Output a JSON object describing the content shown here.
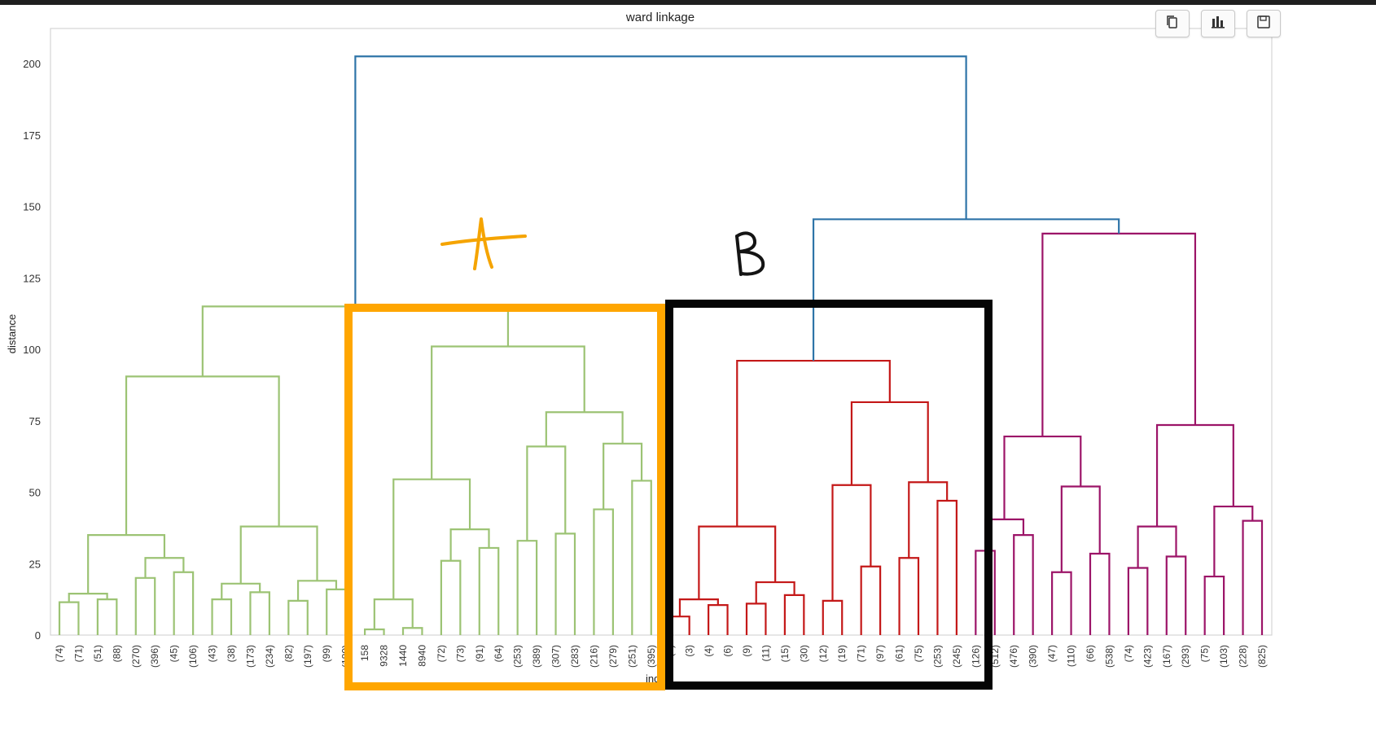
{
  "chart_data": {
    "type": "dendrogram",
    "title": "ward linkage",
    "xlabel": "index",
    "ylabel": "distance",
    "ylim": [
      0,
      212
    ],
    "yticks": [
      0,
      25,
      50,
      75,
      100,
      125,
      150,
      175,
      200
    ],
    "grid": false,
    "leaf_labels": [
      "(74)",
      "(71)",
      "(51)",
      "(88)",
      "(270)",
      "(396)",
      "(45)",
      "(106)",
      "(43)",
      "(38)",
      "(173)",
      "(234)",
      "(82)",
      "(197)",
      "(99)",
      "(180)",
      "158",
      "9328",
      "1440",
      "8940",
      "(72)",
      "(73)",
      "(91)",
      "(64)",
      "(253)",
      "(389)",
      "(307)",
      "(283)",
      "(216)",
      "(279)",
      "(251)",
      "(395)",
      "(1)",
      "(3)",
      "(4)",
      "(6)",
      "(9)",
      "(11)",
      "(15)",
      "(30)",
      "(12)",
      "(19)",
      "(71)",
      "(97)",
      "(61)",
      "(75)",
      "(253)",
      "(245)",
      "(126)",
      "(512)",
      "(476)",
      "(390)",
      "(47)",
      "(110)",
      "(66)",
      "(538)",
      "(74)",
      "(423)",
      "(167)",
      "(293)",
      "(75)",
      "(103)",
      "(228)",
      "(825)"
    ],
    "colors": {
      "cluster1": "#9cc374",
      "cluster2": "#c41818",
      "cluster3": "#9c1468",
      "root": "#2e74a8"
    },
    "links": [
      {
        "a": 0,
        "b": 1,
        "h": 11.5,
        "c": "cluster1"
      },
      {
        "a": 2,
        "b": 3,
        "h": 12.5,
        "c": "cluster1"
      },
      {
        "a": "L0",
        "b": "L1",
        "h": 14.5,
        "c": "cluster1"
      },
      {
        "a": 4,
        "b": 5,
        "h": 20,
        "c": "cluster1"
      },
      {
        "a": 6,
        "b": 7,
        "h": 22,
        "c": "cluster1"
      },
      {
        "a": "L3",
        "b": "L4",
        "h": 27,
        "c": "cluster1"
      },
      {
        "a": "L2",
        "b": "L5",
        "h": 35,
        "c": "cluster1"
      },
      {
        "a": 8,
        "b": 9,
        "h": 12.5,
        "c": "cluster1"
      },
      {
        "a": 10,
        "b": 11,
        "h": 15,
        "c": "cluster1"
      },
      {
        "a": "L7",
        "b": "L8",
        "h": 18,
        "c": "cluster1"
      },
      {
        "a": 12,
        "b": 13,
        "h": 12,
        "c": "cluster1"
      },
      {
        "a": 14,
        "b": 15,
        "h": 16,
        "c": "cluster1"
      },
      {
        "a": "L10",
        "b": "L11",
        "h": 19,
        "c": "cluster1"
      },
      {
        "a": "L9",
        "b": "L12",
        "h": 38,
        "c": "cluster1"
      },
      {
        "a": "L6",
        "b": "L13",
        "h": 90.5,
        "c": "cluster1"
      },
      {
        "a": 16,
        "b": 17,
        "h": 2,
        "c": "cluster1"
      },
      {
        "a": 18,
        "b": 19,
        "h": 2.5,
        "c": "cluster1"
      },
      {
        "a": "L15",
        "b": "L16",
        "h": 12.5,
        "c": "cluster1"
      },
      {
        "a": 20,
        "b": 21,
        "h": 26,
        "c": "cluster1"
      },
      {
        "a": 22,
        "b": 23,
        "h": 30.5,
        "c": "cluster1"
      },
      {
        "a": "L18",
        "b": "L19",
        "h": 37,
        "c": "cluster1"
      },
      {
        "a": "L17",
        "b": "L20",
        "h": 54.5,
        "c": "cluster1"
      },
      {
        "a": 24,
        "b": 25,
        "h": 33,
        "c": "cluster1"
      },
      {
        "a": 26,
        "b": 27,
        "h": 35.5,
        "c": "cluster1"
      },
      {
        "a": "L22",
        "b": "L23",
        "h": 66,
        "c": "cluster1"
      },
      {
        "a": 28,
        "b": 29,
        "h": 44,
        "c": "cluster1"
      },
      {
        "a": 30,
        "b": 31,
        "h": 54,
        "c": "cluster1"
      },
      {
        "a": "L25",
        "b": "L26",
        "h": 67,
        "c": "cluster1"
      },
      {
        "a": "L24",
        "b": "L27",
        "h": 78,
        "c": "cluster1"
      },
      {
        "a": "L21",
        "b": "L28",
        "h": 101,
        "c": "cluster1"
      },
      {
        "a": "L14",
        "b": "L29",
        "h": 115,
        "c": "cluster1"
      },
      {
        "a": 32,
        "b": 33,
        "h": 6.5,
        "c": "cluster2"
      },
      {
        "a": 34,
        "b": 35,
        "h": 10.5,
        "c": "cluster2"
      },
      {
        "a": "L31",
        "b": "L32",
        "h": 12.5,
        "c": "cluster2"
      },
      {
        "a": 36,
        "b": 37,
        "h": 11,
        "c": "cluster2"
      },
      {
        "a": 38,
        "b": 39,
        "h": 14,
        "c": "cluster2"
      },
      {
        "a": "L34",
        "b": "L35",
        "h": 18.5,
        "c": "cluster2"
      },
      {
        "a": "L33",
        "b": "L36",
        "h": 38,
        "c": "cluster2"
      },
      {
        "a": 40,
        "b": 41,
        "h": 12,
        "c": "cluster2"
      },
      {
        "a": 42,
        "b": 43,
        "h": 24,
        "c": "cluster2"
      },
      {
        "a": "L38",
        "b": "L39",
        "h": 52.5,
        "c": "cluster2"
      },
      {
        "a": 44,
        "b": 45,
        "h": 27,
        "c": "cluster2"
      },
      {
        "a": 46,
        "b": 47,
        "h": 47,
        "c": "cluster2"
      },
      {
        "a": "L41",
        "b": "L42",
        "h": 53.5,
        "c": "cluster2"
      },
      {
        "a": "L40",
        "b": "L43",
        "h": 81.5,
        "c": "cluster2"
      },
      {
        "a": "L37",
        "b": "L44",
        "h": 96,
        "c": "cluster2"
      },
      {
        "a": 48,
        "b": 49,
        "h": 29.5,
        "c": "cluster3"
      },
      {
        "a": 50,
        "b": 51,
        "h": 35,
        "c": "cluster3"
      },
      {
        "a": "L46",
        "b": "L47",
        "h": 40.5,
        "c": "cluster3"
      },
      {
        "a": 52,
        "b": 53,
        "h": 22,
        "c": "cluster3"
      },
      {
        "a": 54,
        "b": 55,
        "h": 28.5,
        "c": "cluster3"
      },
      {
        "a": "L49",
        "b": "L50",
        "h": 52,
        "c": "cluster3"
      },
      {
        "a": "L48",
        "b": "L51",
        "h": 69.5,
        "c": "cluster3"
      },
      {
        "a": 56,
        "b": 57,
        "h": 23.5,
        "c": "cluster3"
      },
      {
        "a": 58,
        "b": 59,
        "h": 27.5,
        "c": "cluster3"
      },
      {
        "a": "L53",
        "b": "L54",
        "h": 38,
        "c": "cluster3"
      },
      {
        "a": 60,
        "b": 61,
        "h": 20.5,
        "c": "cluster3"
      },
      {
        "a": 62,
        "b": 63,
        "h": 40,
        "c": "cluster3"
      },
      {
        "a": "L56",
        "b": "L57",
        "h": 45,
        "c": "cluster3"
      },
      {
        "a": "L55",
        "b": "L58",
        "h": 73.5,
        "c": "cluster3"
      },
      {
        "a": "L52",
        "b": "L59",
        "h": 140.5,
        "c": "cluster3"
      },
      {
        "a": "L45",
        "b": "L60",
        "h": 145.5,
        "c": "root"
      },
      {
        "a": "L30",
        "b": "L61",
        "h": 202.5,
        "c": "root"
      }
    ],
    "annotations": [
      {
        "text": "A",
        "kind": "handwritten",
        "color": "#f5a400"
      },
      {
        "text": "B",
        "kind": "handwritten",
        "color": "#141414"
      }
    ],
    "highlight_boxes": [
      {
        "label": "A",
        "color": "#ffa600"
      },
      {
        "label": "B",
        "color": "#050505"
      }
    ]
  },
  "toolbar": {
    "buttons": [
      {
        "icon": "copy-icon"
      },
      {
        "icon": "bar-chart-icon"
      },
      {
        "icon": "save-icon"
      }
    ]
  }
}
